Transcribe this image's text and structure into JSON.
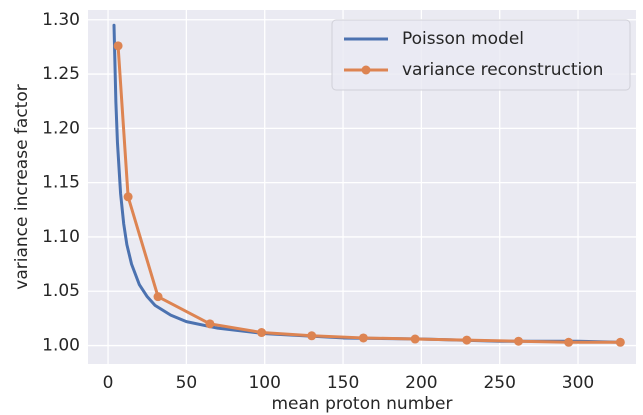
{
  "chart_data": {
    "type": "line",
    "xlabel": "mean proton number",
    "ylabel": "variance increase factor",
    "xlim": [
      -12.8,
      337
    ],
    "ylim": [
      0.983,
      1.309
    ],
    "xticks": [
      0,
      50,
      100,
      150,
      200,
      250,
      300
    ],
    "yticks": [
      {
        "value": 1.0,
        "label": "1.00"
      },
      1.05,
      {
        "value": 1.1,
        "label": "1.10"
      },
      1.15,
      {
        "value": 1.2,
        "label": "1.20"
      },
      1.25,
      {
        "value": 1.3,
        "label": "1.30"
      }
    ],
    "grid": true,
    "legend": "upper right",
    "series": [
      {
        "name": "Poisson model",
        "color": "#4c72b0",
        "markers": false,
        "x": [
          3.8,
          5,
          6,
          8,
          10,
          12,
          15,
          20,
          25,
          30,
          40,
          50,
          70,
          100,
          150,
          200,
          250,
          300,
          327
        ],
        "values": [
          1.295,
          1.224,
          1.187,
          1.14,
          1.112,
          1.093,
          1.075,
          1.056,
          1.045,
          1.037,
          1.028,
          1.022,
          1.016,
          1.011,
          1.007,
          1.006,
          1.004,
          1.004,
          1.003
        ]
      },
      {
        "name": "variance reconstruction",
        "color": "#dd8452",
        "markers": true,
        "x": [
          6.4,
          12.8,
          31.9,
          65,
          98,
          130,
          163,
          196,
          229,
          262,
          294,
          327
        ],
        "values": [
          1.276,
          1.137,
          1.045,
          1.02,
          1.012,
          1.009,
          1.007,
          1.006,
          1.005,
          1.004,
          1.003,
          1.003
        ]
      }
    ]
  }
}
